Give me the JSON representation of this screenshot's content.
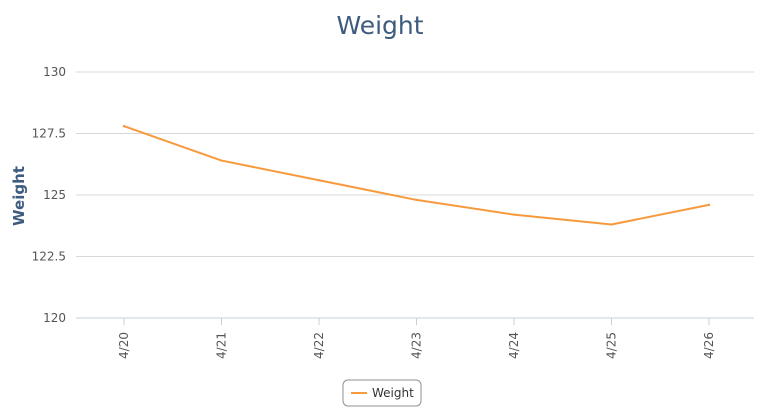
{
  "chart_data": {
    "type": "line",
    "title": "Weight",
    "xlabel": "",
    "ylabel": "Weight",
    "categories": [
      "4/20",
      "4/21",
      "4/22",
      "4/23",
      "4/24",
      "4/25",
      "4/26"
    ],
    "series": [
      {
        "name": "Weight",
        "color": "#f79a3e",
        "values": [
          127.8,
          126.4,
          125.6,
          124.8,
          124.2,
          123.8,
          124.6
        ]
      }
    ],
    "ylim": [
      120,
      130
    ],
    "yticks": [
      120,
      122.5,
      125,
      127.5,
      130
    ],
    "ytick_labels": [
      "120",
      "122.5",
      "125",
      "127.5",
      "130"
    ],
    "grid": true,
    "legend": "bottom-center"
  }
}
